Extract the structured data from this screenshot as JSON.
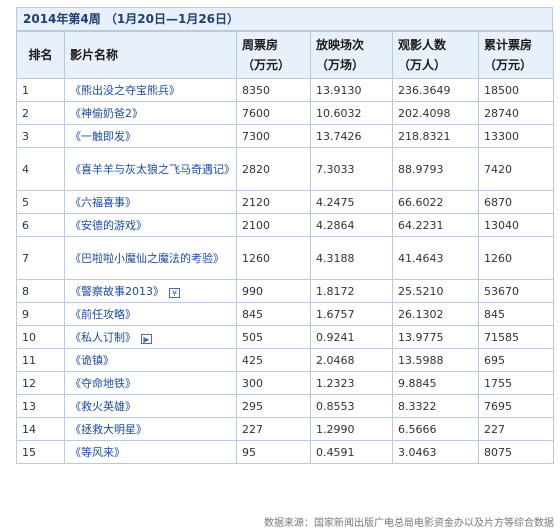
{
  "title": "2014年第4周 （1月20日—1月26日）",
  "headers": {
    "rank": "排名",
    "film": "影片名称",
    "weekly": [
      "周票房",
      "（万元）"
    ],
    "screenings": [
      "放映场次",
      "（万场）"
    ],
    "audience": [
      "观影人数",
      "（万人）"
    ],
    "cumulative": [
      "累计票房",
      "（万元）"
    ]
  },
  "rows": [
    {
      "rank": "1",
      "film": "《熊出没之夺宝熊兵》",
      "weekly": "8350",
      "screenings": "13.9130",
      "audience": "236.3649",
      "cumulative": "18500"
    },
    {
      "rank": "2",
      "film": "《神偷奶爸2》",
      "weekly": "7600",
      "screenings": "10.6032",
      "audience": "202.4098",
      "cumulative": "28740"
    },
    {
      "rank": "3",
      "film": "《一触即发》",
      "weekly": "7300",
      "screenings": "13.7426",
      "audience": "218.8321",
      "cumulative": "13300"
    },
    {
      "rank": "4",
      "film": "《喜羊羊与灰太狼之飞马奇遇记》",
      "weekly": "2820",
      "screenings": "7.3033",
      "audience": "88.9793",
      "cumulative": "7420"
    },
    {
      "rank": "5",
      "film": "《六福喜事》",
      "weekly": "2120",
      "screenings": "4.2475",
      "audience": "66.6022",
      "cumulative": "6870"
    },
    {
      "rank": "6",
      "film": "《安德的游戏》",
      "weekly": "2100",
      "screenings": "4.2864",
      "audience": "64.2231",
      "cumulative": "13040"
    },
    {
      "rank": "7",
      "film": "《巴啦啦小魔仙之魔法的考验》",
      "weekly": "1260",
      "screenings": "4.3188",
      "audience": "41.4643",
      "cumulative": "1260"
    },
    {
      "rank": "8",
      "film": "《警察故事2013》",
      "weekly": "990",
      "screenings": "1.8172",
      "audience": "25.5210",
      "cumulative": "53670"
    },
    {
      "rank": "9",
      "film": "《前任攻略》",
      "weekly": "845",
      "screenings": "1.6757",
      "audience": "26.1302",
      "cumulative": "845"
    },
    {
      "rank": "10",
      "film": "《私人订制》",
      "weekly": "505",
      "screenings": "0.9241",
      "audience": "13.9775",
      "cumulative": "71585"
    },
    {
      "rank": "11",
      "film": "《诡镇》",
      "weekly": "425",
      "screenings": "2.0468",
      "audience": "13.5988",
      "cumulative": "695"
    },
    {
      "rank": "12",
      "film": "《夺命地铁》",
      "weekly": "300",
      "screenings": "1.2323",
      "audience": "9.8845",
      "cumulative": "1755"
    },
    {
      "rank": "13",
      "film": "《救火英雄》",
      "weekly": "295",
      "screenings": "0.8553",
      "audience": "8.3322",
      "cumulative": "7695"
    },
    {
      "rank": "14",
      "film": "《拯救大明星》",
      "weekly": "227",
      "screenings": "1.2990",
      "audience": "6.5666",
      "cumulative": "227"
    },
    {
      "rank": "15",
      "film": "《等风来》",
      "weekly": "95",
      "screenings": "0.4591",
      "audience": "3.0463",
      "cumulative": "8075"
    }
  ],
  "icons": {
    "8": "ticket-icon",
    "10": "play-icon"
  },
  "source": "数据来源：国家新闻出版广电总局电影资金办以及片方等综合数据",
  "colors": {
    "header_bg": "#e8f0fb",
    "border": "#b9c9df",
    "film_link": "#1a4da1",
    "title": "#1d3f73"
  }
}
